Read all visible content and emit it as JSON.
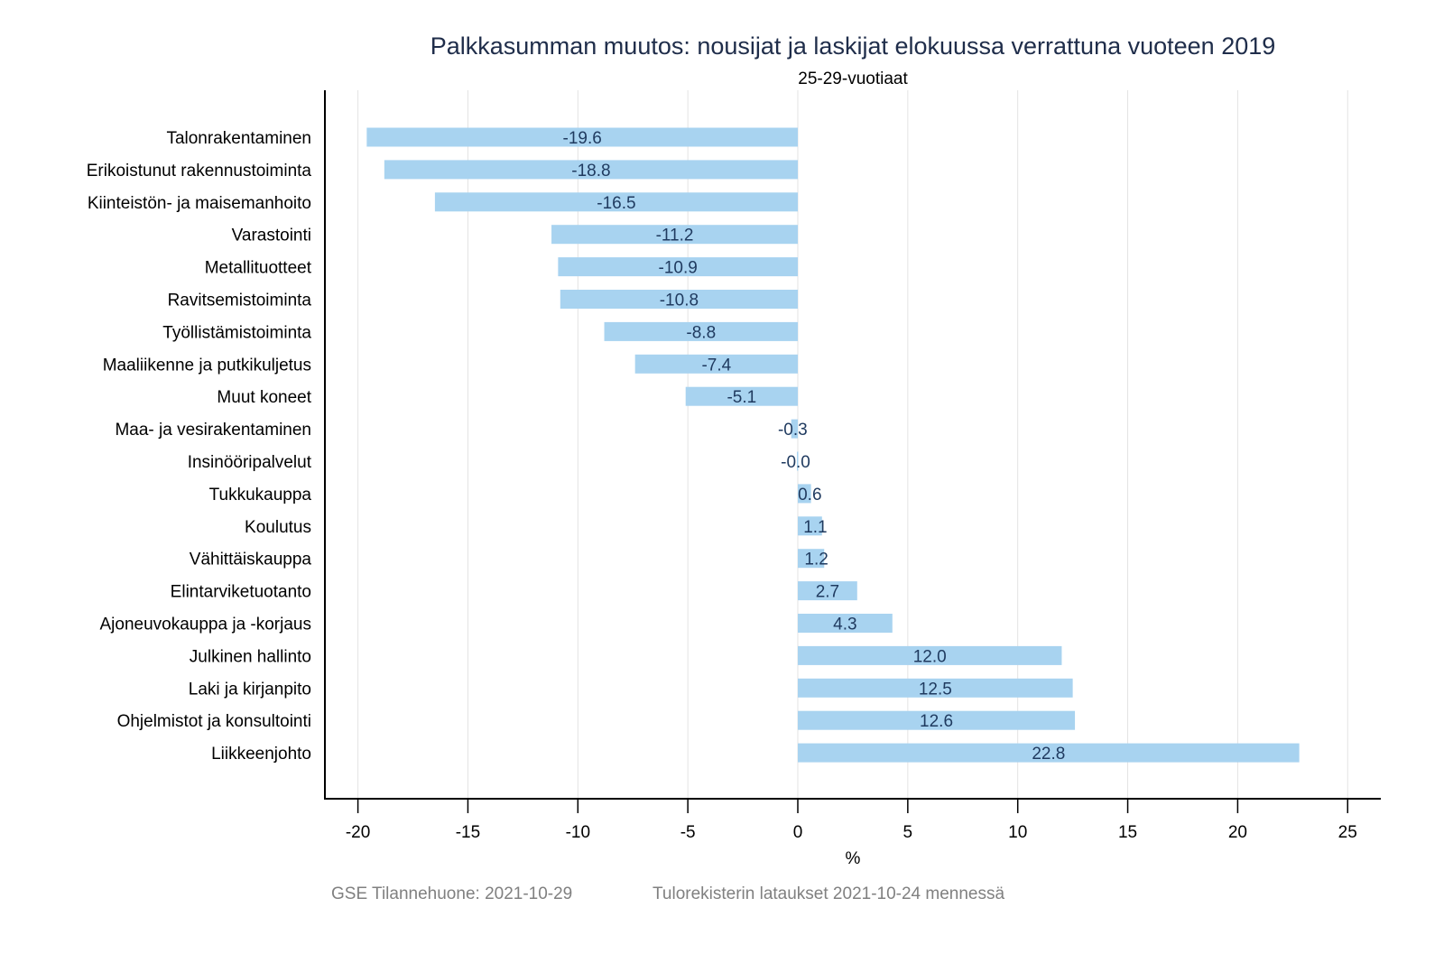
{
  "chart_data": {
    "type": "bar",
    "orientation": "horizontal",
    "title": "Palkkasumman muutos: nousijat ja laskijat elokuussa verrattuna vuoteen 2019",
    "subtitle": "25-29-vuotiaat",
    "xlabel": "%",
    "ylabel": "",
    "xlim": [
      -21.5,
      26.5
    ],
    "xticks": [
      -20,
      -15,
      -10,
      -5,
      0,
      5,
      10,
      15,
      20,
      25
    ],
    "grid": true,
    "categories": [
      "Talonrakentaminen",
      "Erikoistunut rakennustoiminta",
      "Kiinteistön- ja maisemanhoito",
      "Varastointi",
      "Metallituotteet",
      "Ravitsemistoiminta",
      "Työllistämistoiminta",
      "Maaliikenne ja putkikuljetus",
      "Muut koneet",
      "Maa- ja vesirakentaminen",
      "Insinööripalvelut",
      "Tukkukauppa",
      "Koulutus",
      "Vähittäiskauppa",
      "Elintarviketuotanto",
      "Ajoneuvokauppa ja -korjaus",
      "Julkinen hallinto",
      "Laki ja kirjanpito",
      "Ohjelmistot ja konsultointi",
      "Liikkeenjohto"
    ],
    "values": [
      -19.6,
      -18.8,
      -16.5,
      -11.2,
      -10.9,
      -10.8,
      -8.8,
      -7.4,
      -5.1,
      -0.3,
      -0.04,
      0.6,
      1.1,
      1.2,
      2.7,
      4.3,
      12.0,
      12.5,
      12.6,
      22.8
    ],
    "data_labels": [
      "-19.6",
      "-18.8",
      "-16.5",
      "-11.2",
      "-10.9",
      "-10.8",
      "-8.8",
      "-7.4",
      "-5.1",
      "-0.3",
      "-0.0",
      "0.6",
      "1.1",
      "1.2",
      "2.7",
      "4.3",
      "12.0",
      "12.5",
      "12.6",
      "22.8"
    ],
    "colors": {
      "bar": "#a8d3f0",
      "label": "#1f3a5f",
      "grid": "#e3e3e3",
      "axis": "#000000",
      "title": "#1f2d4a",
      "caption": "#808080"
    }
  },
  "footer": {
    "source": "GSE Tilannehuone: 2021-10-29",
    "note": "Tulorekisterin lataukset 2021-10-24 mennessä"
  }
}
